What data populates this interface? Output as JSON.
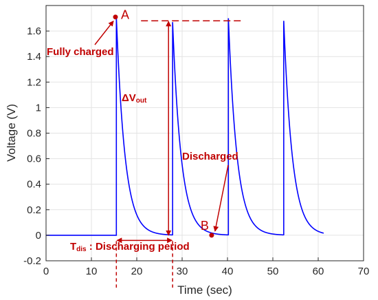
{
  "chart_data": {
    "type": "line",
    "xlabel": "Time (sec)",
    "ylabel": "Voltage (V)",
    "xlim": [
      0,
      70
    ],
    "ylim": [
      -0.2,
      1.8
    ],
    "xticks": [
      "0",
      "10",
      "20",
      "30",
      "40",
      "50",
      "60",
      "70"
    ],
    "yticks": [
      "-0.2",
      "0",
      "0.2",
      "0.4",
      "0.6",
      "0.8",
      "1",
      "1.2",
      "1.4",
      "1.6"
    ],
    "grid": true,
    "series": [
      {
        "color": "#0000ff",
        "baseline": 0.0,
        "pulses": [
          {
            "t_start": 15.5,
            "peak": 1.71,
            "tau": 1.9
          },
          {
            "t_start": 27.9,
            "peak": 1.67,
            "tau": 1.9
          },
          {
            "t_start": 40.2,
            "peak": 1.7,
            "tau": 1.9
          },
          {
            "t_start": 52.4,
            "peak": 1.68,
            "tau": 1.9
          }
        ],
        "t_end": 61.2
      }
    ],
    "annotations": {
      "color": "#c00000",
      "point_a": {
        "label": "A",
        "x": 15.3,
        "y": 1.71
      },
      "point_b": {
        "label": "B",
        "x": 36.5,
        "y": 0.0
      },
      "fully_charged": {
        "text": "Fully charged",
        "target_x": 15.3,
        "target_y": 1.71
      },
      "discharged": {
        "text": "Discharged",
        "target_x": 36.8,
        "target_y": 0.0
      },
      "delta_v": {
        "symbol": "ΔV",
        "subscript": "out",
        "x": 27.0,
        "y_top": 1.68,
        "y_bottom": 0.0,
        "line_x_end": 43.5
      },
      "t_dis": {
        "symbol": "T",
        "subscript": "dis",
        "text": " : Discharging period",
        "x_start": 15.5,
        "x_end": 27.9,
        "arrow_y": -0.04
      }
    }
  }
}
